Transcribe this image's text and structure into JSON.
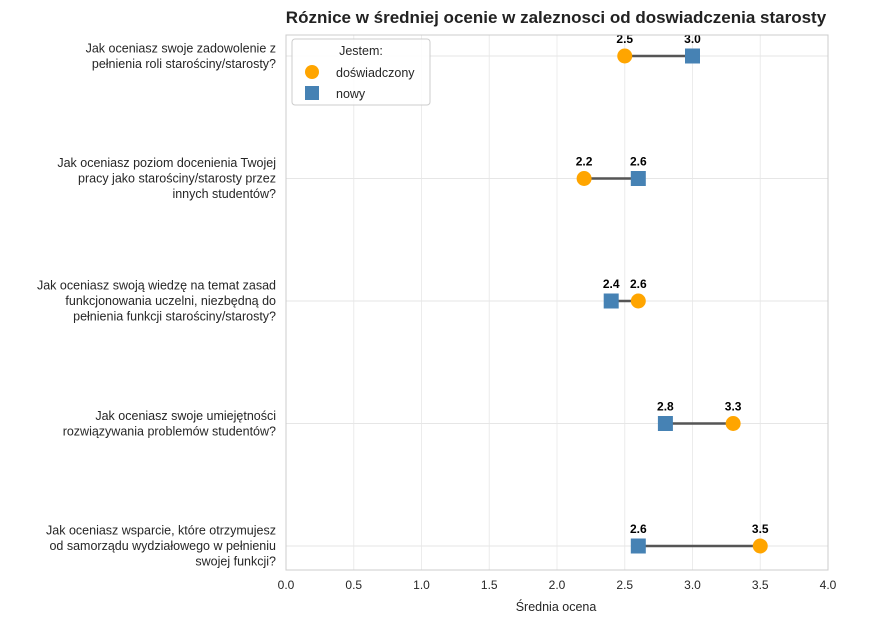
{
  "chart_data": {
    "type": "dumbbell",
    "title": "Róznice w średniej ocenie w zaleznosci od doswiadczenia starosty",
    "xlabel": "Średnia ocena",
    "ylabel": "",
    "xlim": [
      0.0,
      4.0
    ],
    "x_ticks": [
      "0.0",
      "0.5",
      "1.0",
      "1.5",
      "2.0",
      "2.5",
      "3.0",
      "3.5",
      "4.0"
    ],
    "grid": true,
    "legend": {
      "title": "Jestem:",
      "placement": "top-left",
      "entries": [
        "doświadczony",
        "nowy"
      ]
    },
    "categories": [
      [
        "Jak oceniasz swoje zadowolenie z",
        "pełnienia roli starościny/starosty?"
      ],
      [
        "Jak oceniasz poziom docenienia Twojej",
        "pracy jako starościny/starosty przez",
        "innych studentów?"
      ],
      [
        "Jak oceniasz swoją wiedzę na temat zasad",
        "funkcjonowania uczelni, niezbędną do",
        "pełnienia funkcji starościny/starosty?"
      ],
      [
        "Jak oceniasz swoje umiejętności",
        "rozwiązywania problemów studentów?"
      ],
      [
        "Jak oceniasz wsparcie, które otrzymujesz",
        "od samorządu wydziałowego w pełnieniu",
        "swojej funkcji?"
      ]
    ],
    "series": [
      {
        "name": "doświadczony",
        "marker": "circle",
        "color": "#FFA500",
        "values": [
          2.5,
          2.2,
          2.6,
          3.3,
          3.5
        ],
        "labels": [
          "2.5",
          "2.2",
          "2.6",
          "3.3",
          "3.5"
        ]
      },
      {
        "name": "nowy",
        "marker": "square",
        "color": "#4682B4",
        "values": [
          3.0,
          2.6,
          2.4,
          2.8,
          2.6
        ],
        "labels": [
          "3.0",
          "2.6",
          "2.4",
          "2.8",
          "2.6"
        ]
      }
    ],
    "connector_color": "#555555"
  }
}
